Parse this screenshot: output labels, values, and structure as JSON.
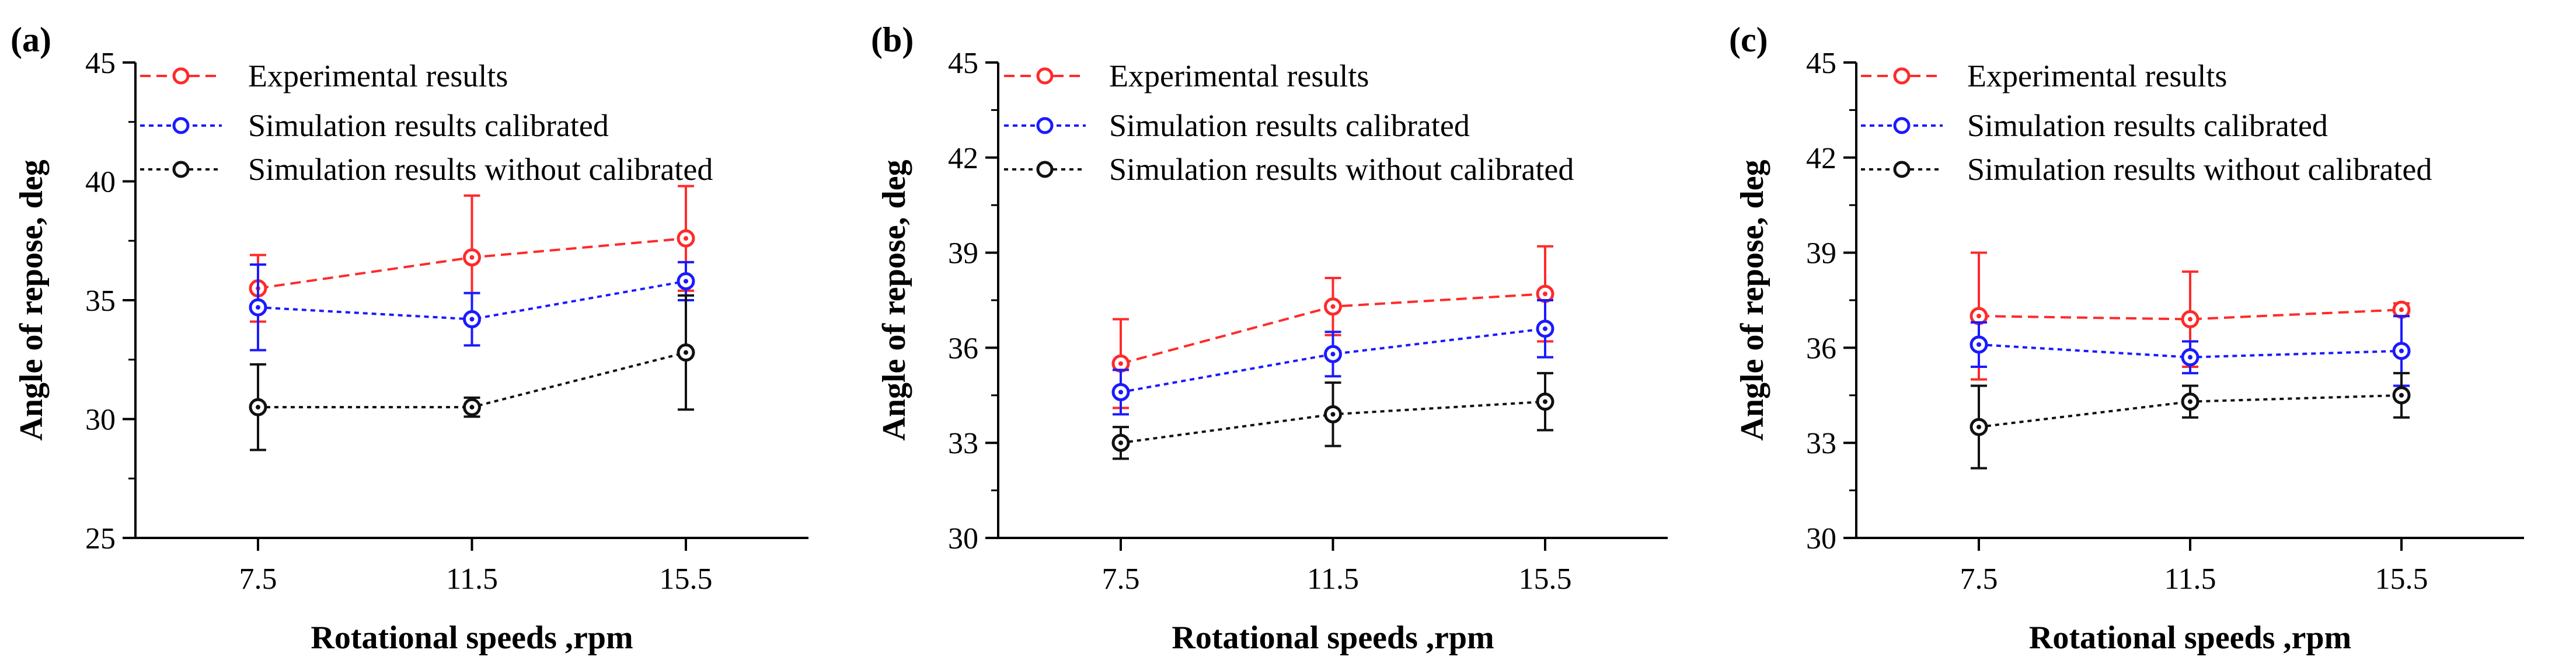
{
  "legend": {
    "experimental": "Experimental results",
    "calibrated": "Simulation results calibrated",
    "uncalibrated": "Simulation results without calibrated"
  },
  "colors": {
    "experimental": "#ff2a2a",
    "calibrated": "#1a1aff",
    "uncalibrated": "#111111"
  },
  "chart_data": [
    {
      "type": "line",
      "panel": "(a)",
      "xlabel": "Rotational speeds ,rpm",
      "ylabel": "Angle of repose, deg",
      "categories": [
        "7.5",
        "11.5",
        "15.5"
      ],
      "ylim": [
        25,
        45
      ],
      "yticks": [
        25,
        30,
        35,
        40,
        45
      ],
      "legend_position": "top",
      "series": [
        {
          "key": "experimental",
          "name": "Experimental results",
          "values": [
            35.5,
            36.8,
            37.6
          ],
          "errors": [
            1.4,
            2.6,
            2.2
          ]
        },
        {
          "key": "calibrated",
          "name": "Simulation results calibrated",
          "values": [
            34.7,
            34.2,
            35.8
          ],
          "errors": [
            1.8,
            1.1,
            0.8
          ]
        },
        {
          "key": "uncalibrated",
          "name": "Simulation results without calibrated",
          "values": [
            30.5,
            30.5,
            32.8
          ],
          "errors": [
            1.8,
            0.4,
            2.4
          ]
        }
      ]
    },
    {
      "type": "line",
      "panel": "(b)",
      "xlabel": "Rotational speeds ,rpm",
      "ylabel": "Angle of repose, deg",
      "categories": [
        "7.5",
        "11.5",
        "15.5"
      ],
      "ylim": [
        30,
        45
      ],
      "yticks": [
        30,
        33,
        36,
        39,
        42,
        45
      ],
      "legend_position": "top",
      "series": [
        {
          "key": "experimental",
          "name": "Experimental results",
          "values": [
            35.5,
            37.3,
            37.7
          ],
          "errors": [
            1.4,
            0.9,
            1.5
          ]
        },
        {
          "key": "calibrated",
          "name": "Simulation results calibrated",
          "values": [
            34.6,
            35.8,
            36.6
          ],
          "errors": [
            0.7,
            0.7,
            0.9
          ]
        },
        {
          "key": "uncalibrated",
          "name": "Simulation results without calibrated",
          "values": [
            33.0,
            33.9,
            34.3
          ],
          "errors": [
            0.5,
            1.0,
            0.9
          ]
        }
      ]
    },
    {
      "type": "line",
      "panel": "(c)",
      "xlabel": "Rotational speeds ,rpm",
      "ylabel": "Angle of repose, deg",
      "categories": [
        "7.5",
        "11.5",
        "15.5"
      ],
      "ylim": [
        30,
        45
      ],
      "yticks": [
        30,
        33,
        36,
        39,
        42,
        45
      ],
      "legend_position": "top",
      "series": [
        {
          "key": "experimental",
          "name": "Experimental results",
          "values": [
            37.0,
            36.9,
            37.2
          ],
          "errors": [
            2.0,
            1.5,
            0.2
          ]
        },
        {
          "key": "calibrated",
          "name": "Simulation results calibrated",
          "values": [
            36.1,
            35.7,
            35.9
          ],
          "errors": [
            0.7,
            0.5,
            1.1
          ]
        },
        {
          "key": "uncalibrated",
          "name": "Simulation results without calibrated",
          "values": [
            33.5,
            34.3,
            34.5
          ],
          "errors": [
            1.3,
            0.5,
            0.7
          ]
        }
      ]
    }
  ]
}
